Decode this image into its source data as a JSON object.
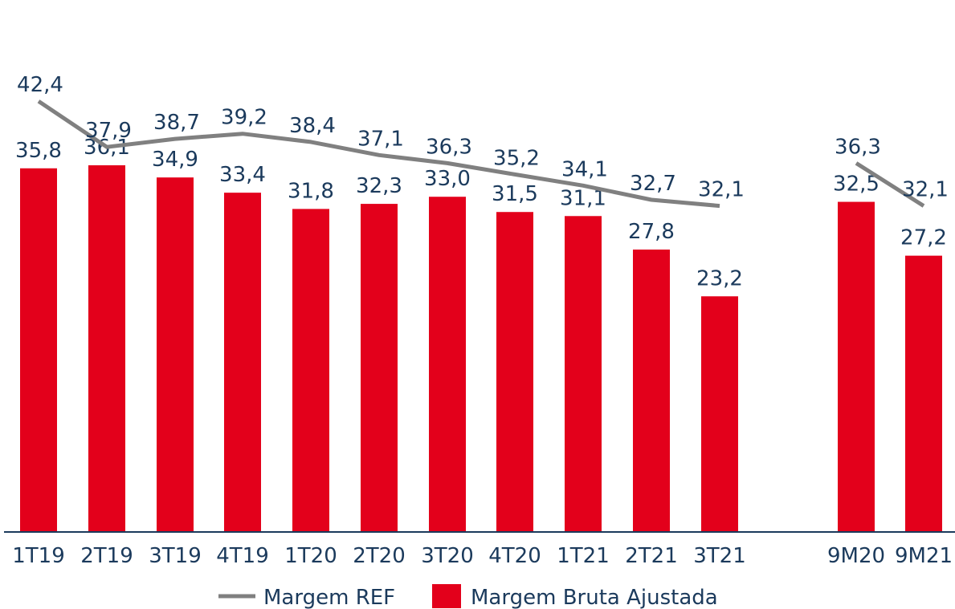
{
  "chart_data": {
    "type": "bar",
    "categories": [
      "1T19",
      "2T19",
      "3T19",
      "4T19",
      "1T20",
      "2T20",
      "3T20",
      "4T20",
      "1T21",
      "2T21",
      "3T21",
      "9M20",
      "9M21"
    ],
    "series": [
      {
        "name": "Margem Bruta Ajustada",
        "type": "bar",
        "color": "#e3001b",
        "values": [
          35.8,
          36.1,
          34.9,
          33.4,
          31.8,
          32.3,
          33.0,
          31.5,
          31.1,
          27.8,
          23.2,
          32.5,
          27.2
        ],
        "labels": [
          "35,8",
          "36,1",
          "34,9",
          "33,4",
          "31,8",
          "32,3",
          "33,0",
          "31,5",
          "31,1",
          "27,8",
          "23,2",
          "32,5",
          "27,2"
        ]
      },
      {
        "name": "Margem REF",
        "type": "line",
        "color": "#808080",
        "values": [
          42.4,
          37.9,
          38.7,
          39.2,
          38.4,
          37.1,
          36.3,
          35.2,
          34.1,
          32.7,
          32.1,
          36.3,
          32.1
        ],
        "labels": [
          "42,4",
          "37,9",
          "38,7",
          "39,2",
          "38,4",
          "37,1",
          "36,3",
          "35,2",
          "34,1",
          "32,7",
          "32,1",
          "36,3",
          "32,1"
        ],
        "segments": [
          [
            0,
            10
          ],
          [
            11,
            12
          ]
        ]
      }
    ],
    "legend": {
      "position": "bottom",
      "entries": [
        "Margem REF",
        "Margem Bruta Ajustada"
      ]
    },
    "grid": false,
    "axis_color": "#1b3a5c"
  }
}
